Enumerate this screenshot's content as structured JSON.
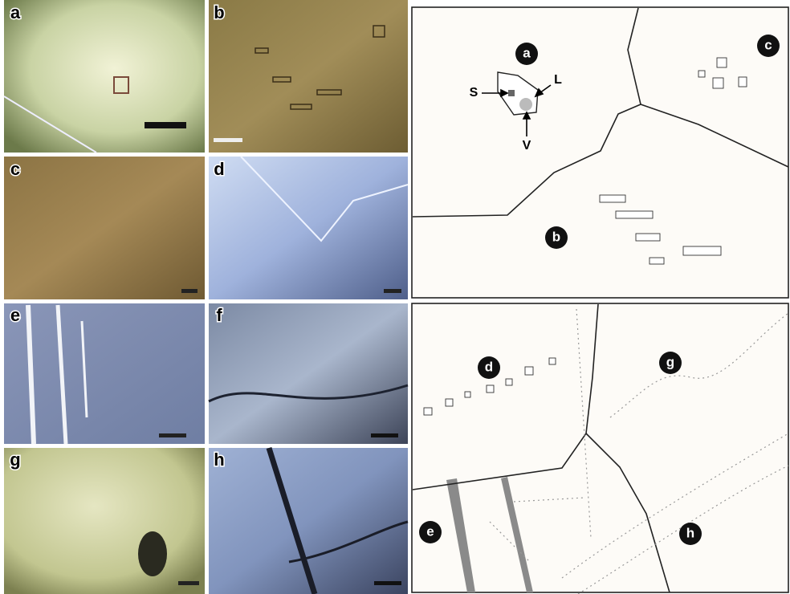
{
  "photo_panels": [
    "a",
    "b",
    "c",
    "d",
    "e",
    "f",
    "g",
    "h"
  ],
  "schematic_top": {
    "labels": [
      "a",
      "b",
      "c"
    ],
    "phases": [
      "S",
      "L",
      "V"
    ]
  },
  "schematic_bottom": {
    "labels": [
      "d",
      "g",
      "e",
      "h"
    ]
  }
}
